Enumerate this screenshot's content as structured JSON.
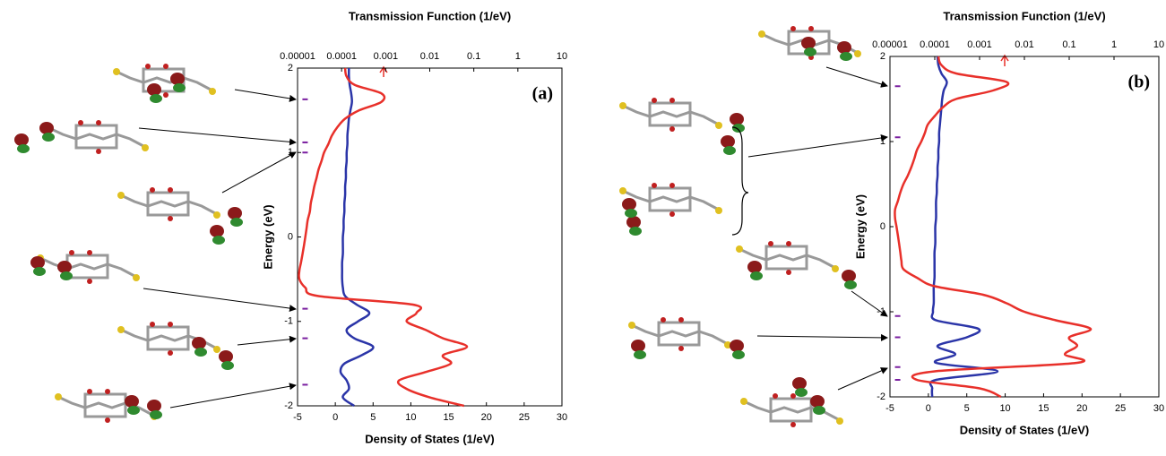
{
  "chart_data": [
    {
      "type": "line",
      "panel_label": "(a)",
      "x_label": "Density of States (1/eV)",
      "x2_label": "Transmission Function (1/eV)",
      "y_label": "Energy (eV)",
      "xlim": [
        -5,
        30
      ],
      "xticks": [
        -5,
        0,
        5,
        10,
        15,
        20,
        25,
        30
      ],
      "x2lim": [
        1e-05,
        10
      ],
      "x2ticks": [
        1e-05,
        0.0001,
        0.001,
        0.01,
        0.1,
        1,
        10
      ],
      "x2scale": "log",
      "ylim": [
        -2,
        2
      ],
      "yticks": [
        -2,
        -1,
        0,
        1,
        2
      ],
      "y": [
        2,
        1.9,
        1.8,
        1.7,
        1.6,
        1.5,
        1.4,
        1.3,
        1.2,
        1.1,
        1,
        0.9,
        0.8,
        0.7,
        0.6,
        0.5,
        0.4,
        0.3,
        0.2,
        0.1,
        0,
        -0.1,
        -0.2,
        -0.3,
        -0.4,
        -0.5,
        -0.6,
        -0.7,
        -0.8,
        -0.9,
        -1,
        -1.1,
        -1.2,
        -1.3,
        -1.4,
        -1.5,
        -1.6,
        -1.7,
        -1.8,
        -1.9,
        -2
      ],
      "series": [
        {
          "color": "#2b35a8",
          "axis": "x",
          "values": [
            1.8,
            1.8,
            1.9,
            2.1,
            2.2,
            2.0,
            1.8,
            1.7,
            1.6,
            1.6,
            1.5,
            1.5,
            1.4,
            1.4,
            1.3,
            1.3,
            1.2,
            1.2,
            1.1,
            1.1,
            1.0,
            1.0,
            1.0,
            0.9,
            0.9,
            0.9,
            1.0,
            1.3,
            2.8,
            4.5,
            3.0,
            1.5,
            2.5,
            5.0,
            3.5,
            1.2,
            0.7,
            1.5,
            1.8,
            1.0,
            2.5
          ]
        },
        {
          "color": "#e8302a",
          "axis": "x2",
          "values": [
            0.00012,
            0.00013,
            0.0002,
            0.0008,
            0.0008,
            0.00025,
            0.00012,
            8e-05,
            6e-05,
            5e-05,
            4e-05,
            3.5e-05,
            3e-05,
            2.7e-05,
            2.4e-05,
            2.2e-05,
            2e-05,
            1.9e-05,
            1.7e-05,
            1.6e-05,
            1.5e-05,
            1.4e-05,
            1.3e-05,
            1.2e-05,
            1.1e-05,
            1.1e-05,
            1.5e-05,
            3e-05,
            0.004,
            0.005,
            0.003,
            0.008,
            0.02,
            0.07,
            0.02,
            0.03,
            0.008,
            0.002,
            0.003,
            0.01,
            0.06
          ]
        }
      ],
      "levels": [
        1.63,
        1.12,
        1.0,
        -0.85,
        -1.2,
        -1.75
      ],
      "levels_color": "#7a1fa0",
      "levels_at": -4
    },
    {
      "type": "line",
      "panel_label": "(b)",
      "x_label": "Density of States (1/eV)",
      "x2_label": "Transmission Function (1/eV)",
      "y_label": "Energy (eV)",
      "xlim": [
        -5,
        30
      ],
      "xticks": [
        -5,
        0,
        5,
        10,
        15,
        20,
        25,
        30
      ],
      "x2lim": [
        1e-05,
        10
      ],
      "x2ticks": [
        1e-05,
        0.0001,
        0.001,
        0.01,
        0.1,
        1,
        10
      ],
      "x2scale": "log",
      "ylim": [
        -2,
        2
      ],
      "yticks": [
        -2,
        -1,
        0,
        1,
        2
      ],
      "y": [
        2,
        1.9,
        1.8,
        1.7,
        1.6,
        1.5,
        1.4,
        1.3,
        1.2,
        1.1,
        1,
        0.9,
        0.8,
        0.7,
        0.6,
        0.5,
        0.4,
        0.3,
        0.2,
        0.1,
        0,
        -0.1,
        -0.2,
        -0.3,
        -0.4,
        -0.5,
        -0.6,
        -0.7,
        -0.8,
        -0.9,
        -1,
        -1.1,
        -1.2,
        -1.3,
        -1.4,
        -1.5,
        -1.6,
        -1.7,
        -1.8,
        -1.9,
        -2
      ],
      "series": [
        {
          "color": "#2b35a8",
          "axis": "x",
          "values": [
            1.2,
            1.3,
            1.7,
            2.4,
            2.0,
            1.8,
            1.7,
            1.6,
            1.5,
            1.4,
            1.4,
            1.3,
            1.3,
            1.2,
            1.2,
            1.1,
            1.1,
            1.0,
            1.0,
            1.0,
            0.9,
            0.9,
            0.9,
            0.8,
            0.8,
            0.8,
            0.8,
            0.7,
            0.7,
            0.7,
            0.6,
            1.0,
            6.5,
            5.0,
            1.2,
            3.5,
            1.0,
            9.0,
            1.0,
            0.5,
            0.5
          ]
        },
        {
          "color": "#e8302a",
          "axis": "x2",
          "values": [
            0.00012,
            0.00014,
            0.0003,
            0.004,
            0.002,
            0.0003,
            0.00015,
            0.0001,
            7e-05,
            6e-05,
            5e-05,
            4e-05,
            3.5e-05,
            3e-05,
            2.5e-05,
            2e-05,
            1.7e-05,
            1.5e-05,
            1.3e-05,
            1.3e-05,
            1.4e-05,
            1.5e-05,
            1.6e-05,
            1.7e-05,
            1.8e-05,
            2e-05,
            4e-05,
            0.0001,
            0.0012,
            0.004,
            0.01,
            0.05,
            0.3,
            0.1,
            0.15,
            0.08,
            0.15,
            0.0001,
            4e-05,
            0.001,
            0.003
          ]
        }
      ],
      "levels": [
        1.65,
        1.05,
        -1.05,
        -1.3,
        -1.65,
        -1.8
      ],
      "levels_color": "#7a1fa0",
      "levels_at": -4
    }
  ]
}
